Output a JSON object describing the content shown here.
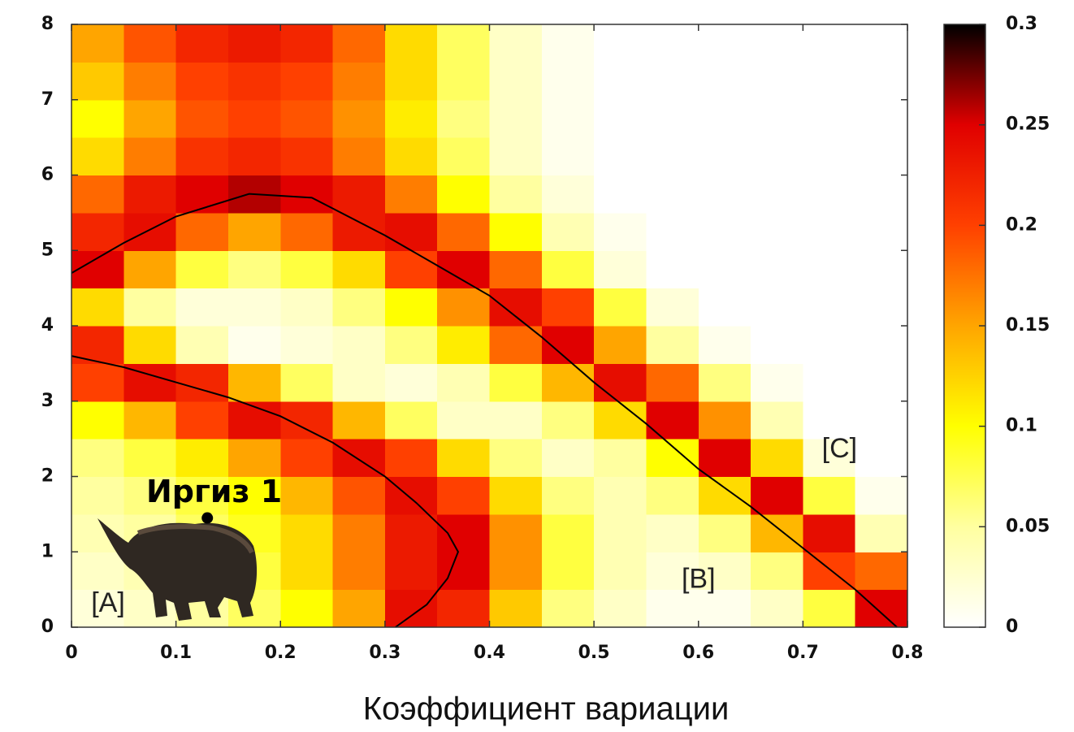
{
  "chart_data": {
    "type": "heatmap",
    "xlabel": "Коэффициент вариации",
    "xlim": [
      0,
      0.8
    ],
    "ylim": [
      0,
      8
    ],
    "xticks": [
      0,
      0.1,
      0.2,
      0.3,
      0.4,
      0.5,
      0.6,
      0.7,
      0.8
    ],
    "yticks": [
      0,
      1,
      2,
      3,
      4,
      5,
      6,
      7,
      8
    ],
    "x": [
      0.025,
      0.075,
      0.125,
      0.175,
      0.225,
      0.275,
      0.325,
      0.375,
      0.425,
      0.475,
      0.525,
      0.575,
      0.625,
      0.675,
      0.725,
      0.775
    ],
    "y": [
      0.25,
      0.75,
      1.25,
      1.75,
      2.25,
      2.75,
      3.25,
      3.75,
      4.25,
      4.75,
      5.25,
      5.75,
      6.25,
      6.75,
      7.25,
      7.75
    ],
    "z": [
      [
        0.02,
        0.03,
        0.05,
        0.07,
        0.1,
        0.15,
        0.24,
        0.22,
        0.13,
        0.06,
        0.03,
        0.01,
        0.01,
        0.03,
        0.08,
        0.25
      ],
      [
        0.03,
        0.04,
        0.06,
        0.08,
        0.12,
        0.17,
        0.23,
        0.25,
        0.16,
        0.08,
        0.04,
        0.02,
        0.03,
        0.06,
        0.2,
        0.18
      ],
      [
        0.04,
        0.05,
        0.07,
        0.09,
        0.12,
        0.17,
        0.23,
        0.25,
        0.16,
        0.08,
        0.04,
        0.03,
        0.06,
        0.14,
        0.24,
        0.04
      ],
      [
        0.05,
        0.06,
        0.08,
        0.1,
        0.14,
        0.19,
        0.24,
        0.2,
        0.12,
        0.06,
        0.04,
        0.06,
        0.12,
        0.25,
        0.08,
        0.01
      ],
      [
        0.06,
        0.08,
        0.11,
        0.15,
        0.2,
        0.24,
        0.2,
        0.12,
        0.06,
        0.03,
        0.05,
        0.1,
        0.25,
        0.12,
        0.02,
        0
      ],
      [
        0.1,
        0.14,
        0.2,
        0.24,
        0.22,
        0.14,
        0.07,
        0.03,
        0.03,
        0.06,
        0.12,
        0.25,
        0.16,
        0.04,
        0,
        0
      ],
      [
        0.2,
        0.24,
        0.22,
        0.14,
        0.07,
        0.03,
        0.02,
        0.04,
        0.08,
        0.14,
        0.24,
        0.18,
        0.06,
        0.01,
        0,
        0
      ],
      [
        0.22,
        0.12,
        0.04,
        0.01,
        0.02,
        0.03,
        0.06,
        0.11,
        0.18,
        0.25,
        0.15,
        0.05,
        0.01,
        0,
        0,
        0
      ],
      [
        0.12,
        0.05,
        0.02,
        0.02,
        0.03,
        0.06,
        0.1,
        0.16,
        0.24,
        0.2,
        0.08,
        0.02,
        0,
        0,
        0,
        0
      ],
      [
        0.25,
        0.15,
        0.08,
        0.06,
        0.08,
        0.12,
        0.2,
        0.25,
        0.18,
        0.08,
        0.02,
        0,
        0,
        0,
        0,
        0
      ],
      [
        0.22,
        0.24,
        0.18,
        0.15,
        0.18,
        0.23,
        0.24,
        0.18,
        0.1,
        0.04,
        0.01,
        0,
        0,
        0,
        0,
        0
      ],
      [
        0.18,
        0.23,
        0.25,
        0.26,
        0.25,
        0.23,
        0.17,
        0.1,
        0.05,
        0.02,
        0,
        0,
        0,
        0,
        0,
        0
      ],
      [
        0.12,
        0.17,
        0.21,
        0.22,
        0.21,
        0.17,
        0.12,
        0.07,
        0.03,
        0.01,
        0,
        0,
        0,
        0,
        0,
        0
      ],
      [
        0.1,
        0.15,
        0.19,
        0.2,
        0.19,
        0.16,
        0.11,
        0.06,
        0.03,
        0.01,
        0,
        0,
        0,
        0,
        0,
        0
      ],
      [
        0.13,
        0.17,
        0.2,
        0.21,
        0.2,
        0.17,
        0.12,
        0.07,
        0.03,
        0.01,
        0,
        0,
        0,
        0,
        0,
        0
      ],
      [
        0.15,
        0.19,
        0.22,
        0.23,
        0.22,
        0.18,
        0.12,
        0.07,
        0.03,
        0.01,
        0,
        0,
        0,
        0,
        0,
        0
      ]
    ],
    "zlim": [
      0,
      0.3
    ],
    "zticks": [
      0,
      0.05,
      0.1,
      0.15,
      0.2,
      0.25,
      0.3
    ],
    "colorscale": [
      "#ffffff",
      "#ffffa0",
      "#ffff00",
      "#ffa500",
      "#ff4000",
      "#e00000",
      "#000000"
    ],
    "contours": [
      {
        "color": "#000000",
        "x": [
          0,
          0.05,
          0.1,
          0.15,
          0.2,
          0.25,
          0.3,
          0.33,
          0.36,
          0.37,
          0.36,
          0.34,
          0.31
        ],
        "y": [
          3.6,
          3.45,
          3.25,
          3.05,
          2.8,
          2.45,
          2.0,
          1.65,
          1.25,
          1.0,
          0.65,
          0.3,
          0
        ]
      },
      {
        "color": "#000000",
        "x": [
          0,
          0.05,
          0.1,
          0.17,
          0.23,
          0.3,
          0.35,
          0.4,
          0.45,
          0.5,
          0.55,
          0.6,
          0.65,
          0.7,
          0.75,
          0.79
        ],
        "y": [
          4.7,
          5.1,
          5.45,
          5.75,
          5.7,
          5.2,
          4.8,
          4.4,
          3.85,
          3.25,
          2.7,
          2.1,
          1.6,
          1.05,
          0.5,
          0
        ]
      }
    ],
    "point": {
      "label": "Иргиз 1",
      "x": 0.13,
      "y": 1.45
    },
    "annotations": [
      {
        "text": "[A]",
        "x": 0.035,
        "y": 0.3
      },
      {
        "text": "[B]",
        "x": 0.6,
        "y": 0.62
      },
      {
        "text": "[C]",
        "x": 0.735,
        "y": 2.35
      }
    ]
  }
}
